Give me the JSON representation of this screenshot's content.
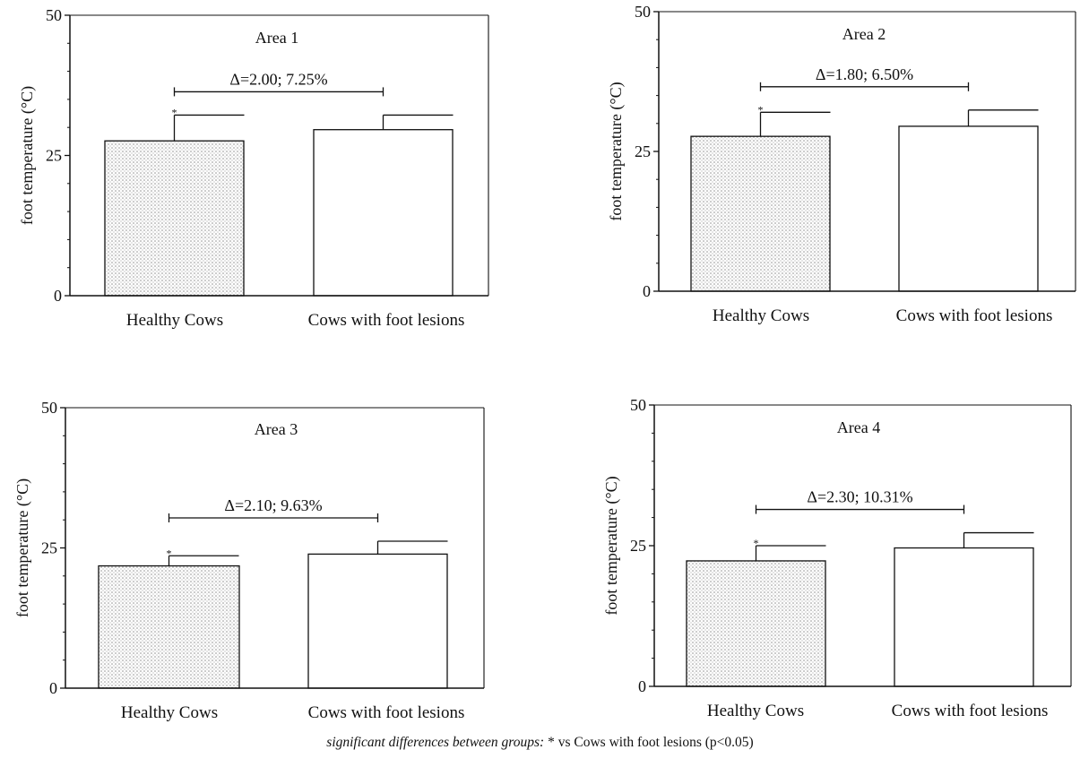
{
  "chart_data": [
    {
      "type": "bar",
      "title": "Area 1",
      "ylabel": "foot temperature (°C)",
      "categories": [
        "Healthy Cows",
        "Cows with foot lesions"
      ],
      "values": [
        27.6,
        29.6
      ],
      "errors": [
        4.6,
        2.6
      ],
      "ylim": [
        0,
        50
      ],
      "yticks": [
        0,
        25,
        50
      ],
      "significance": [
        "*",
        ""
      ],
      "annotation": "Δ=2.00; 7.25%"
    },
    {
      "type": "bar",
      "title": "Area 2",
      "ylabel": "foot temperature (°C)",
      "categories": [
        "Healthy Cows",
        "Cows with foot lesions"
      ],
      "values": [
        27.7,
        29.5
      ],
      "errors": [
        4.3,
        2.9
      ],
      "ylim": [
        0,
        50
      ],
      "yticks": [
        0,
        25,
        50
      ],
      "significance": [
        "*",
        ""
      ],
      "annotation": "Δ=1.80; 6.50%"
    },
    {
      "type": "bar",
      "title": "Area 3",
      "ylabel": "foot temperature (°C)",
      "categories": [
        "Healthy Cows",
        "Cows with foot lesions"
      ],
      "values": [
        21.8,
        23.9
      ],
      "errors": [
        1.8,
        2.3
      ],
      "ylim": [
        0,
        50
      ],
      "yticks": [
        0,
        25,
        50
      ],
      "significance": [
        "*",
        ""
      ],
      "annotation": "Δ=2.10; 9.63%"
    },
    {
      "type": "bar",
      "title": "Area 4",
      "ylabel": "foot temperature (°C)",
      "categories": [
        "Healthy Cows",
        "Cows with foot lesions"
      ],
      "values": [
        22.3,
        24.6
      ],
      "errors": [
        2.7,
        2.7
      ],
      "ylim": [
        0,
        50
      ],
      "yticks": [
        0,
        25,
        50
      ],
      "significance": [
        "*",
        ""
      ],
      "annotation": "Δ=2.30; 10.31%"
    }
  ],
  "footnote": {
    "italic": "significant differences between groups:",
    "text": " * vs Cows with foot lesions (p<0.05)"
  },
  "colors": {
    "healthy_fill": "dotted-gray",
    "lesion_fill": "#ffffff",
    "ink": "#111111"
  }
}
